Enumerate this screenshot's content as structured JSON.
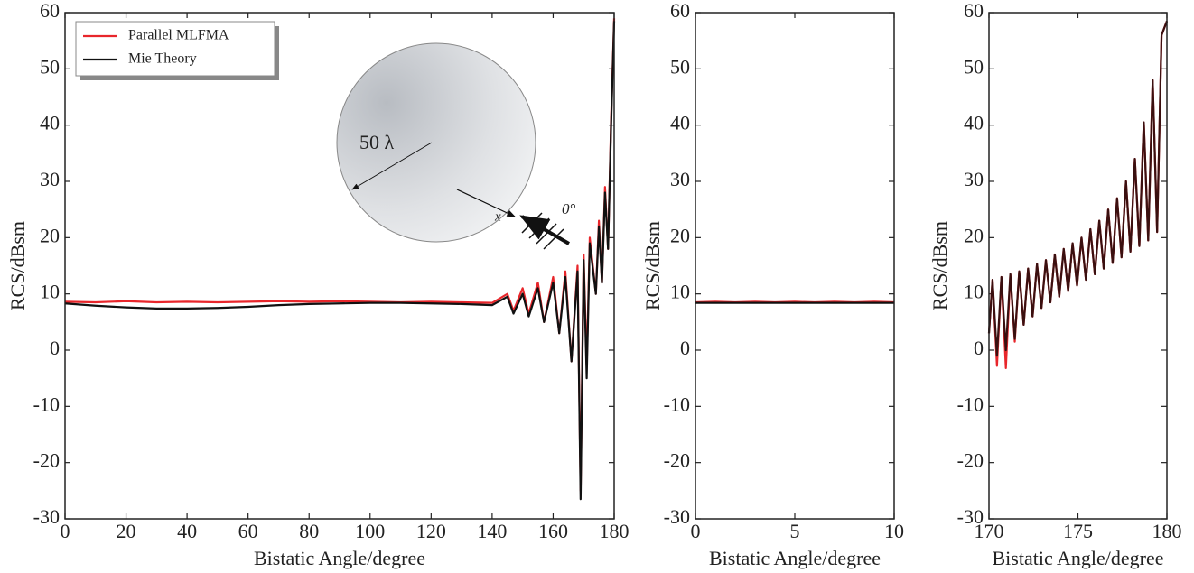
{
  "chart_data": [
    {
      "type": "line",
      "xlabel": "Bistatic Angle/degree",
      "ylabel": "RCS/dBsm",
      "legend": "upper left",
      "xlim": [
        0,
        180
      ],
      "ylim": [
        -30,
        60
      ],
      "xticks": [
        0,
        20,
        40,
        60,
        80,
        100,
        120,
        140,
        160,
        180
      ],
      "yticks": [
        -30,
        -20,
        -10,
        0,
        10,
        20,
        30,
        40,
        50,
        60
      ],
      "annotations": [
        "50 λ",
        "x",
        "0°"
      ],
      "x": [
        0,
        10,
        20,
        30,
        40,
        50,
        60,
        70,
        80,
        90,
        100,
        110,
        120,
        130,
        140,
        145,
        147,
        150,
        152,
        155,
        157,
        160,
        162,
        164,
        166,
        168,
        169,
        170,
        171,
        172,
        174,
        175,
        176,
        177,
        178,
        179,
        180
      ],
      "series": [
        {
          "name": "Parallel MLFMA",
          "color": "#e8262b",
          "values": [
            8.6,
            8.5,
            8.7,
            8.5,
            8.6,
            8.5,
            8.6,
            8.7,
            8.6,
            8.7,
            8.6,
            8.5,
            8.6,
            8.5,
            8.4,
            10,
            7,
            11,
            6.5,
            12,
            5,
            13,
            3,
            14,
            -2,
            15,
            -25,
            17,
            -3,
            20,
            10,
            23,
            12,
            29,
            18,
            41,
            59
          ]
        },
        {
          "name": "Mie Theory",
          "color": "#111111",
          "values": [
            8.3,
            7.9,
            7.6,
            7.4,
            7.4,
            7.5,
            7.7,
            8.0,
            8.2,
            8.3,
            8.4,
            8.4,
            8.3,
            8.2,
            8.0,
            9.5,
            6.5,
            10,
            6,
            11,
            5,
            12,
            3,
            13,
            -2,
            14,
            -26.5,
            16,
            -5,
            19,
            10,
            22,
            12,
            28,
            18,
            40,
            58.5
          ]
        }
      ]
    },
    {
      "type": "line",
      "xlabel": "Bistatic Angle/degree",
      "ylabel": "RCS/dBsm",
      "xlim": [
        0,
        10
      ],
      "ylim": [
        -30,
        60
      ],
      "xticks": [
        0,
        5,
        10
      ],
      "yticks": [
        -30,
        -20,
        -10,
        0,
        10,
        20,
        30,
        40,
        50,
        60
      ],
      "x": [
        0,
        1,
        2,
        3,
        4,
        5,
        6,
        7,
        8,
        9,
        10
      ],
      "series": [
        {
          "color": "#e8262b",
          "values": [
            8.5,
            8.6,
            8.5,
            8.6,
            8.5,
            8.6,
            8.5,
            8.6,
            8.5,
            8.6,
            8.5
          ]
        },
        {
          "color": "#111111",
          "values": [
            8.4,
            8.4,
            8.4,
            8.4,
            8.4,
            8.4,
            8.4,
            8.4,
            8.4,
            8.4,
            8.4
          ]
        }
      ]
    },
    {
      "type": "line",
      "xlabel": "Bistatic Angle/degree",
      "ylabel": "RCS/dBsm",
      "xlim": [
        170,
        180
      ],
      "ylim": [
        -30,
        60
      ],
      "xticks": [
        170,
        175,
        180
      ],
      "yticks": [
        -30,
        -20,
        -10,
        0,
        10,
        20,
        30,
        40,
        50,
        60
      ],
      "x": [
        170,
        170.2,
        170.45,
        170.7,
        170.95,
        171.2,
        171.45,
        171.7,
        171.95,
        172.2,
        172.45,
        172.7,
        172.95,
        173.2,
        173.45,
        173.7,
        173.95,
        174.2,
        174.45,
        174.7,
        174.95,
        175.2,
        175.45,
        175.7,
        175.95,
        176.2,
        176.45,
        176.7,
        176.95,
        177.2,
        177.45,
        177.7,
        177.95,
        178.2,
        178.45,
        178.7,
        178.95,
        179.2,
        179.45,
        179.7,
        180
      ],
      "series": [
        {
          "color": "#e8262b",
          "values": [
            3,
            12.5,
            -2.8,
            13,
            -3.2,
            13.5,
            1.5,
            14,
            4.5,
            14.5,
            6,
            15.3,
            7.5,
            16,
            8.5,
            17,
            9.5,
            18,
            10.5,
            19,
            11.5,
            20,
            12.5,
            21.5,
            13.5,
            23,
            14.5,
            25,
            15.5,
            27,
            16.5,
            30,
            17.5,
            34,
            18.5,
            40.5,
            19.5,
            48,
            21,
            56,
            58.5
          ]
        },
        {
          "color": "#3a1010",
          "values": [
            3,
            12.5,
            -1,
            13,
            0,
            13.5,
            2,
            14,
            4.5,
            14.5,
            6,
            15.3,
            7.5,
            16,
            8.5,
            17,
            9.5,
            18,
            10.5,
            19,
            11.5,
            20,
            12.5,
            21.5,
            13.5,
            23,
            14.5,
            25,
            15.5,
            27,
            16.5,
            30,
            17.5,
            34,
            18.5,
            40.5,
            19.5,
            48,
            21,
            56,
            58.5
          ]
        }
      ]
    }
  ]
}
